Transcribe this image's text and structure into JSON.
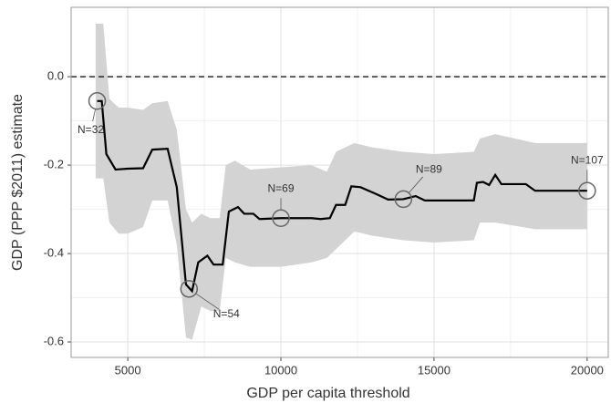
{
  "chart_data": {
    "type": "line",
    "xlabel": "GDP per capita threshold",
    "ylabel": "GDP (PPP $2011) estimate",
    "x": [
      4000,
      4150,
      4300,
      4600,
      5000,
      5500,
      5800,
      6300,
      6600,
      6900,
      7100,
      7300,
      7600,
      7800,
      8100,
      8300,
      8600,
      8800,
      9100,
      9300,
      10000,
      11000,
      11300,
      11600,
      11800,
      12100,
      12300,
      12600,
      13100,
      13500,
      14000,
      14400,
      14700,
      15500,
      16300,
      16400,
      16600,
      16800,
      17000,
      17200,
      18000,
      18300,
      20000
    ],
    "series": [
      {
        "color": "#000000",
        "values": [
          -0.055,
          -0.055,
          -0.175,
          -0.21,
          -0.208,
          -0.207,
          -0.165,
          -0.163,
          -0.25,
          -0.47,
          -0.485,
          -0.42,
          -0.405,
          -0.425,
          -0.425,
          -0.305,
          -0.295,
          -0.31,
          -0.31,
          -0.322,
          -0.32,
          -0.32,
          -0.322,
          -0.32,
          -0.29,
          -0.29,
          -0.248,
          -0.25,
          -0.265,
          -0.278,
          -0.277,
          -0.27,
          -0.28,
          -0.28,
          -0.28,
          -0.24,
          -0.238,
          -0.245,
          -0.222,
          -0.243,
          -0.243,
          -0.258,
          -0.258
        ]
      }
    ],
    "band": {
      "color": "#d3d3d3",
      "x": [
        3950,
        4200,
        4400,
        4700,
        5000,
        5500,
        5800,
        6300,
        6600,
        6900,
        7100,
        7400,
        7700,
        8000,
        8200,
        8500,
        9000,
        10000,
        11000,
        11500,
        11800,
        12400,
        13000,
        14000,
        15000,
        16300,
        16500,
        17000,
        18300,
        20000
      ],
      "upper": [
        0.12,
        0.12,
        -0.05,
        -0.07,
        -0.07,
        -0.075,
        -0.06,
        -0.055,
        -0.12,
        -0.3,
        -0.33,
        -0.31,
        -0.32,
        -0.32,
        -0.2,
        -0.19,
        -0.21,
        -0.205,
        -0.2,
        -0.215,
        -0.17,
        -0.15,
        -0.16,
        -0.17,
        -0.175,
        -0.17,
        -0.14,
        -0.13,
        -0.15,
        -0.15
      ],
      "lower": [
        -0.23,
        -0.23,
        -0.33,
        -0.355,
        -0.355,
        -0.34,
        -0.28,
        -0.28,
        -0.38,
        -0.59,
        -0.595,
        -0.52,
        -0.53,
        -0.53,
        -0.41,
        -0.42,
        -0.43,
        -0.43,
        -0.42,
        -0.41,
        -0.39,
        -0.35,
        -0.36,
        -0.37,
        -0.375,
        -0.37,
        -0.33,
        -0.33,
        -0.345,
        -0.345
      ]
    },
    "hline": 0,
    "annotations": [
      {
        "x": 4000,
        "y": -0.055,
        "text": "N=32"
      },
      {
        "x": 7000,
        "y": -0.48,
        "text": "N=54"
      },
      {
        "x": 10000,
        "y": -0.32,
        "text": "N=69"
      },
      {
        "x": 14000,
        "y": -0.277,
        "text": "N=89"
      },
      {
        "x": 20000,
        "y": -0.258,
        "text": "N=107"
      }
    ],
    "xlim": [
      3150,
      20690
    ],
    "ylim": [
      -0.635,
      0.157
    ],
    "xticks": [
      5000,
      10000,
      15000,
      20000
    ],
    "yticks": [
      -0.6,
      -0.4,
      -0.2,
      {
        "value": 0,
        "label": "0.0"
      }
    ],
    "grid": true
  }
}
